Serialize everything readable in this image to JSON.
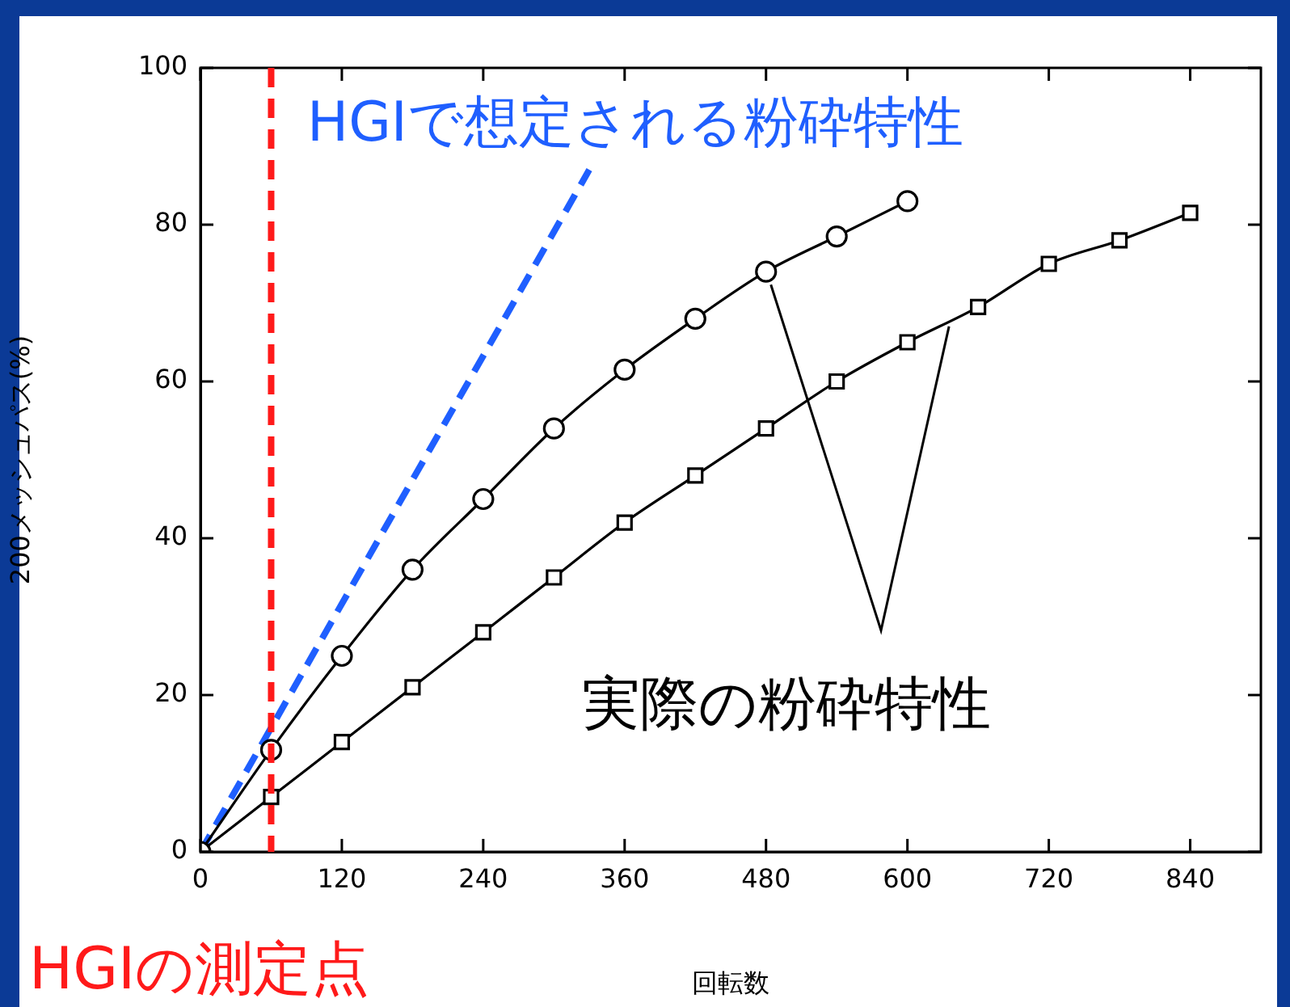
{
  "chart_data": {
    "type": "line",
    "xlabel": "回転数",
    "ylabel": "200メッシュパス(%)",
    "xlim": [
      0,
      900
    ],
    "ylim": [
      0,
      100
    ],
    "xticks": [
      0,
      120,
      240,
      360,
      480,
      600,
      720,
      840
    ],
    "yticks": [
      0,
      20,
      40,
      60,
      80,
      100
    ],
    "grid": false,
    "legend": false,
    "series": [
      {
        "color": "#000000",
        "marker": "circle",
        "x": [
          0,
          60,
          120,
          180,
          240,
          300,
          360,
          420,
          480,
          540,
          600
        ],
        "values": [
          0,
          13,
          25,
          36,
          45,
          54,
          61.5,
          68,
          74,
          78.5,
          83
        ]
      },
      {
        "color": "#000000",
        "marker": "square",
        "x": [
          0,
          60,
          120,
          180,
          240,
          300,
          360,
          420,
          480,
          540,
          600,
          660,
          720,
          780,
          840
        ],
        "values": [
          0,
          7,
          14,
          21,
          28,
          35,
          42,
          48,
          54,
          60,
          65,
          69.5,
          75,
          78,
          81.5
        ]
      },
      {
        "name": "HGIで想定される粉砕特性",
        "color": "#1f5fff",
        "marker": "none",
        "line_style": "dashed",
        "x": [
          0,
          330
        ],
        "values": [
          0,
          87
        ]
      }
    ],
    "ref_lines": [
      {
        "axis": "x",
        "value": 60,
        "label": "HGIの測定点",
        "color": "#ff1a1a",
        "line_style": "dashed"
      }
    ],
    "annotations": [
      "実際の粉砕特性"
    ]
  }
}
